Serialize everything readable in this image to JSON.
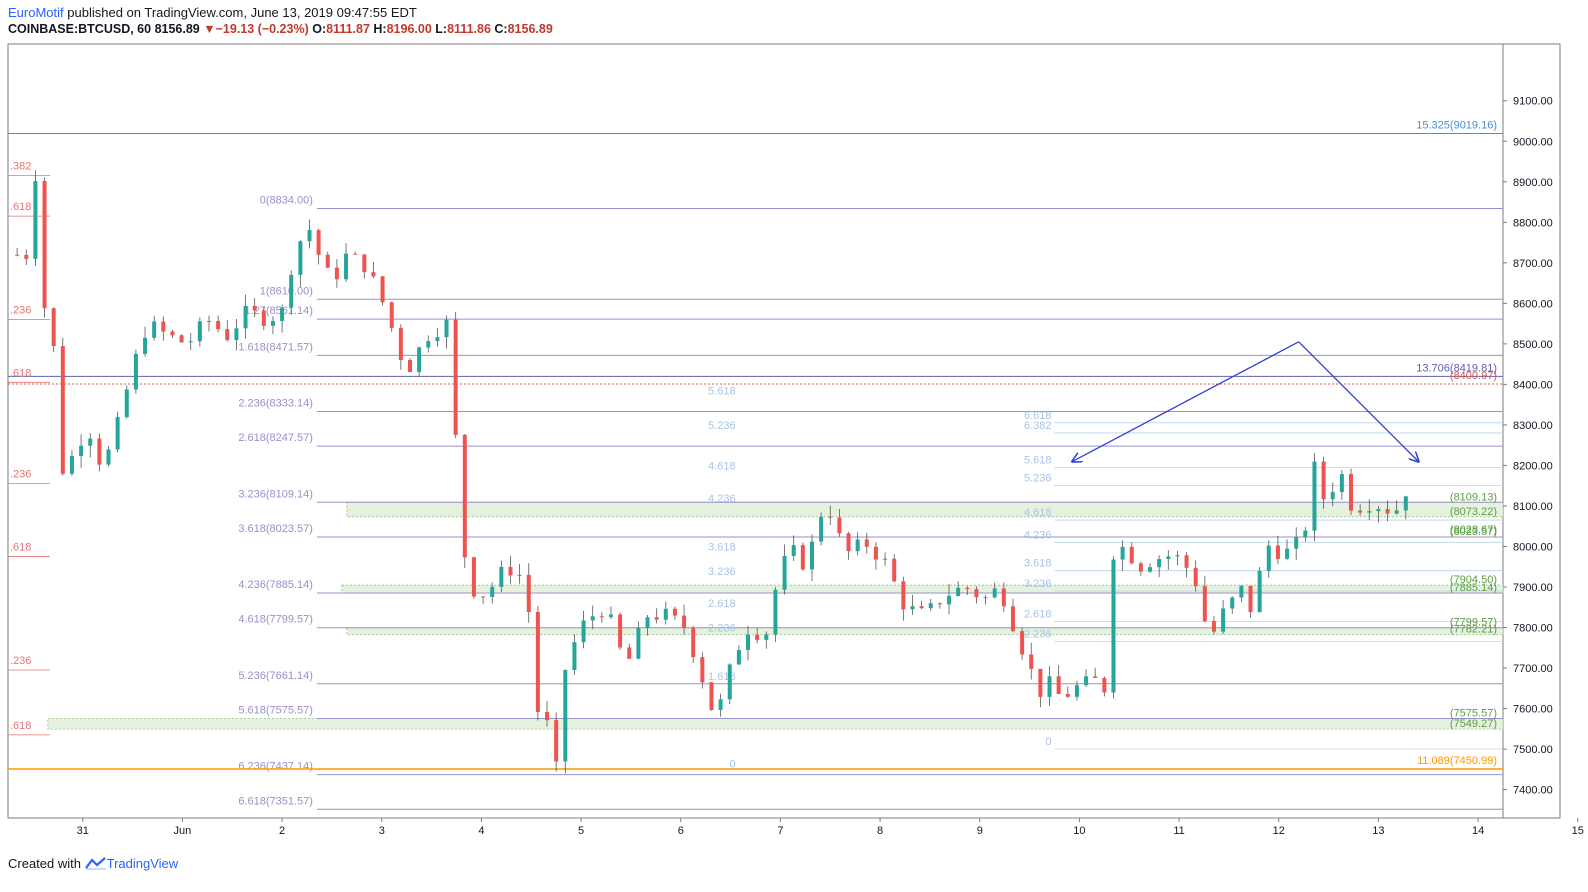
{
  "header": {
    "author": "EuroMotif",
    "published": "published on TradingView.com, June 13, 2019 09:47:55 EDT",
    "symbol": "COINBASE:BTCUSD, 60",
    "last": "8156.89",
    "change_arrow": "▼",
    "change": "−19.13 (−0.23%)",
    "o_label": "O:",
    "o": "8111.87",
    "h_label": "H:",
    "h": "8196.00",
    "l_label": "L:",
    "l": "8111.86",
    "c_label": "C:",
    "c": "8156.89"
  },
  "footer": {
    "created": "Created with",
    "brand": "TradingView"
  },
  "colors": {
    "up": "#26a69a",
    "down": "#ef5350",
    "purple": "#9890c8",
    "blue": "#4a8fd1",
    "orange": "#ff9800",
    "green": "#5c9e46",
    "red": "#e0554b"
  },
  "chart_data": {
    "type": "candlestick",
    "x_label_range": [
      0,
      15
    ],
    "ylim": [
      7330,
      9240
    ],
    "y_ticks": [
      "9100.00",
      "9000.00",
      "8900.00",
      "8800.00",
      "8700.00",
      "8600.00",
      "8500.00",
      "8400.00",
      "8300.00",
      "8200.00",
      "8100.00",
      "8000.00",
      "7900.00",
      "7800.00",
      "7700.00",
      "7600.00",
      "7500.00",
      "7400.00"
    ],
    "x_ticks": [
      {
        "label": "31",
        "x": 0.75
      },
      {
        "label": "Jun",
        "x": 1.75
      },
      {
        "label": "2",
        "x": 2.75
      },
      {
        "label": "3",
        "x": 3.75
      },
      {
        "label": "4",
        "x": 4.75
      },
      {
        "label": "5",
        "x": 5.75
      },
      {
        "label": "6",
        "x": 6.75
      },
      {
        "label": "7",
        "x": 7.75
      },
      {
        "label": "8",
        "x": 8.75
      },
      {
        "label": "9",
        "x": 9.75
      },
      {
        "label": "10",
        "x": 10.75
      },
      {
        "label": "11",
        "x": 11.75
      },
      {
        "label": "12",
        "x": 12.75
      },
      {
        "label": "13",
        "x": 13.75
      },
      {
        "label": "14",
        "x": 14.75
      },
      {
        "label": "15",
        "x": 15.75
      }
    ],
    "price_path": [
      [
        0.0,
        8720
      ],
      [
        0.25,
        8720
      ],
      [
        0.27,
        8940
      ],
      [
        0.35,
        8600
      ],
      [
        0.45,
        8550
      ],
      [
        0.5,
        8180
      ],
      [
        0.6,
        8200
      ],
      [
        0.8,
        8300
      ],
      [
        0.95,
        8190
      ],
      [
        1.1,
        8300
      ],
      [
        1.25,
        8440
      ],
      [
        1.4,
        8550
      ],
      [
        1.6,
        8520
      ],
      [
        1.8,
        8500
      ],
      [
        2.0,
        8560
      ],
      [
        2.2,
        8520
      ],
      [
        2.4,
        8580
      ],
      [
        2.6,
        8560
      ],
      [
        2.75,
        8580
      ],
      [
        2.85,
        8700
      ],
      [
        3.0,
        8800
      ],
      [
        3.1,
        8730
      ],
      [
        3.25,
        8650
      ],
      [
        3.4,
        8720
      ],
      [
        3.6,
        8690
      ],
      [
        3.8,
        8580
      ],
      [
        3.9,
        8500
      ],
      [
        4.0,
        8430
      ],
      [
        4.2,
        8520
      ],
      [
        4.4,
        8550
      ],
      [
        4.45,
        8450
      ],
      [
        4.55,
        8010
      ],
      [
        4.7,
        7870
      ],
      [
        4.85,
        7900
      ],
      [
        5.0,
        7950
      ],
      [
        5.2,
        7920
      ],
      [
        5.3,
        7600
      ],
      [
        5.4,
        7570
      ],
      [
        5.5,
        7450
      ],
      [
        5.6,
        7720
      ],
      [
        5.8,
        7820
      ],
      [
        6.0,
        7850
      ],
      [
        6.2,
        7700
      ],
      [
        6.4,
        7830
      ],
      [
        6.6,
        7830
      ],
      [
        6.8,
        7800
      ],
      [
        7.0,
        7650
      ],
      [
        7.1,
        7570
      ],
      [
        7.25,
        7700
      ],
      [
        7.4,
        7800
      ],
      [
        7.6,
        7780
      ],
      [
        7.75,
        7950
      ],
      [
        7.9,
        7990
      ],
      [
        8.0,
        7950
      ],
      [
        8.1,
        8030
      ],
      [
        8.2,
        8120
      ],
      [
        8.3,
        8050
      ],
      [
        8.4,
        7980
      ],
      [
        8.6,
        8010
      ],
      [
        8.8,
        7960
      ],
      [
        9.0,
        7850
      ],
      [
        9.2,
        7830
      ],
      [
        9.4,
        7880
      ],
      [
        9.6,
        7900
      ],
      [
        9.8,
        7870
      ],
      [
        9.95,
        7900
      ],
      [
        10.1,
        7800
      ],
      [
        10.25,
        7700
      ],
      [
        10.4,
        7620
      ],
      [
        10.5,
        7700
      ],
      [
        10.55,
        7620
      ],
      [
        10.7,
        7650
      ],
      [
        10.9,
        7670
      ],
      [
        11.0,
        7650
      ],
      [
        11.05,
        7980
      ],
      [
        11.2,
        8000
      ],
      [
        11.35,
        7950
      ],
      [
        11.5,
        7970
      ],
      [
        11.7,
        7980
      ],
      [
        11.9,
        7930
      ],
      [
        12.0,
        7820
      ],
      [
        12.1,
        7790
      ],
      [
        12.2,
        7840
      ],
      [
        12.4,
        7900
      ],
      [
        12.5,
        7820
      ],
      [
        12.6,
        8010
      ],
      [
        12.8,
        7980
      ],
      [
        13.0,
        8020
      ],
      [
        13.1,
        8200
      ],
      [
        13.2,
        8120
      ],
      [
        13.4,
        8180
      ],
      [
        13.5,
        8080
      ],
      [
        13.6,
        8110
      ],
      [
        13.8,
        8100
      ],
      [
        13.9,
        8080
      ],
      [
        14.0,
        8120
      ],
      [
        14.05,
        8157
      ]
    ],
    "levels": [
      {
        "label": "15.325(9019.16)",
        "price": 9019.16,
        "x0": 0.0,
        "x1": 15.9,
        "color": "#4a8fd1",
        "label_side": "right"
      },
      {
        "label": "0(8834.00)",
        "price": 8834.0,
        "x0": 3.1,
        "x1": 15.9,
        "color": "#9890c8",
        "label_side": "left"
      },
      {
        "label": "1(8610.00)",
        "price": 8610.0,
        "x0": 3.1,
        "x1": 15.9,
        "color": "#9890c8",
        "label_side": "left"
      },
      {
        "label": "1.27(8561.14)",
        "price": 8561.14,
        "x0": 3.1,
        "x1": 15.9,
        "color": "#9890c8",
        "label_side": "left"
      },
      {
        "label": "1.618(8471.57)",
        "price": 8471.57,
        "x0": 3.1,
        "x1": 15.9,
        "color": "#9890c8",
        "label_side": "left"
      },
      {
        "label": "13.706(8419.81)",
        "price": 8419.81,
        "x0": 0.0,
        "x1": 15.9,
        "color": "#6060b0",
        "label_side": "right"
      },
      {
        "label": "(8400.97)",
        "price": 8400.97,
        "x0": 0.0,
        "x1": 15.9,
        "color": "#e0554b",
        "label_side": "right",
        "dashed": true
      },
      {
        "label": "2.236(8333.14)",
        "price": 8333.14,
        "x0": 3.1,
        "x1": 15.9,
        "color": "#9890c8",
        "label_side": "left"
      },
      {
        "label": "2.618(8247.57)",
        "price": 8247.57,
        "x0": 3.1,
        "x1": 15.9,
        "color": "#9890c8",
        "label_side": "left"
      },
      {
        "label": "3.236(8109.14)",
        "price": 8109.14,
        "x0": 3.1,
        "x1": 15.9,
        "color": "#9890c8",
        "label_side": "left"
      },
      {
        "label": "3.618(8023.57)",
        "price": 8023.57,
        "x0": 3.1,
        "x1": 15.9,
        "color": "#9890c8",
        "label_side": "left"
      },
      {
        "label": "4.236(7885.14)",
        "price": 7885.14,
        "x0": 3.1,
        "x1": 15.9,
        "color": "#9890c8",
        "label_side": "left"
      },
      {
        "label": "4.618(7799.57)",
        "price": 7799.57,
        "x0": 3.1,
        "x1": 15.9,
        "color": "#9890c8",
        "label_side": "left"
      },
      {
        "label": "5.236(7661.14)",
        "price": 7661.14,
        "x0": 3.1,
        "x1": 15.9,
        "color": "#9890c8",
        "label_side": "left"
      },
      {
        "label": "5.618(7575.57)",
        "price": 7575.57,
        "x0": 3.1,
        "x1": 15.9,
        "color": "#9890c8",
        "label_side": "left"
      },
      {
        "label": "6.236(7437.14)",
        "price": 7437.14,
        "x0": 3.1,
        "x1": 15.9,
        "color": "#9890c8",
        "label_side": "left"
      },
      {
        "label": "6.618(7351.57)",
        "price": 7351.57,
        "x0": 3.1,
        "x1": 15.9,
        "color": "#9890c8",
        "label_side": "left"
      },
      {
        "label": "11.089(7450.99)",
        "price": 7450.99,
        "x0": 0.0,
        "x1": 15.9,
        "color": "#ff9800",
        "label_side": "right"
      }
    ],
    "left_fib": [
      {
        "label": ".382",
        "price": 8930
      },
      {
        "label": ".618",
        "price": 8830
      },
      {
        "label": ".236",
        "price": 8575
      },
      {
        "label": ".618",
        "price": 8420
      },
      {
        "label": ".236",
        "price": 8170
      },
      {
        "label": ".618",
        "price": 7990
      },
      {
        "label": ".236",
        "price": 7710
      },
      {
        "label": ".618",
        "price": 7550
      }
    ],
    "fib_labels_mid": [
      {
        "label": "5.618",
        "price": 8385,
        "x": 7.3
      },
      {
        "label": "5.236",
        "price": 8300,
        "x": 7.3
      },
      {
        "label": "4.618",
        "price": 8200,
        "x": 7.3
      },
      {
        "label": "4.236",
        "price": 8120,
        "x": 7.3
      },
      {
        "label": "3.618",
        "price": 8000,
        "x": 7.3
      },
      {
        "label": "3.236",
        "price": 7940,
        "x": 7.3
      },
      {
        "label": "2.618",
        "price": 7860,
        "x": 7.3
      },
      {
        "label": "2.236",
        "price": 7800,
        "x": 7.3
      },
      {
        "label": "1.618",
        "price": 7680,
        "x": 7.3
      },
      {
        "label": "0",
        "price": 7465,
        "x": 7.3
      }
    ],
    "fib_labels_right": [
      {
        "label": "6.618",
        "price": 8325,
        "x": 10.5
      },
      {
        "label": "6.382",
        "price": 8300,
        "x": 10.5
      },
      {
        "label": "5.618",
        "price": 8215,
        "x": 10.5
      },
      {
        "label": "5.236",
        "price": 8170,
        "x": 10.5
      },
      {
        "label": "4.618",
        "price": 8085,
        "x": 10.5
      },
      {
        "label": "4.236",
        "price": 8030,
        "x": 10.5
      },
      {
        "label": "3.618",
        "price": 7960,
        "x": 10.5
      },
      {
        "label": "3.236",
        "price": 7910,
        "x": 10.5
      },
      {
        "label": "2.618",
        "price": 7835,
        "x": 10.5
      },
      {
        "label": "2.236",
        "price": 7785,
        "x": 10.5
      },
      {
        "label": "0",
        "price": 7520,
        "x": 10.5
      }
    ],
    "zone_labels_right": [
      {
        "label": "(8109.13)",
        "price": 8109.13
      },
      {
        "label": "(8073.22)",
        "price": 8073.22
      },
      {
        "label": "(8028.67)",
        "price": 8028.67
      },
      {
        "label": "(8023.57)",
        "price": 8023.57
      },
      {
        "label": "(7904.50)",
        "price": 7904.5
      },
      {
        "label": "(7885.14)",
        "price": 7885.14
      },
      {
        "label": "(7799.57)",
        "price": 7799.57
      },
      {
        "label": "(7782.21)",
        "price": 7782.21
      },
      {
        "label": "(7575.57)",
        "price": 7575.57
      },
      {
        "label": "(7549.27)",
        "price": 7549.27
      }
    ],
    "zones": [
      {
        "p1": 8109.13,
        "p2": 8073.22,
        "x0": 3.4
      },
      {
        "p1": 7904.5,
        "p2": 7885.14,
        "x0": 3.35
      },
      {
        "p1": 7799.57,
        "p2": 7782.21,
        "x0": 3.4
      },
      {
        "p1": 7575.57,
        "p2": 7549.27,
        "x0": 0.4
      }
    ],
    "arrows": [
      {
        "x1": 12.95,
        "p1": 8505,
        "x2": 10.68,
        "p2": 8210
      },
      {
        "x1": 12.95,
        "p1": 8505,
        "x2": 14.15,
        "p2": 8210
      }
    ]
  }
}
